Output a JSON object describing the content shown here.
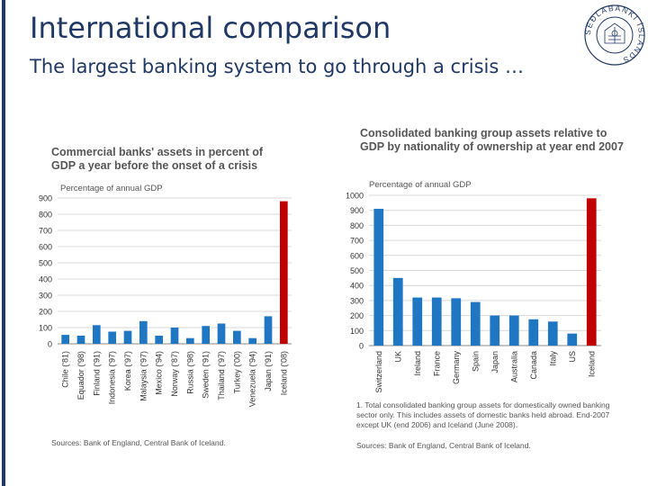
{
  "slide": {
    "title": "International comparison",
    "subtitle": "The largest banking system to go through a crisis …",
    "accent_color": "#1f3864",
    "logo_icon": "seal-icon",
    "logo_text": "SEÐLABANKI ÍSLANDS"
  },
  "chart_data": [
    {
      "type": "bar",
      "title": "Commercial banks' assets in percent of GDP a year before the onset of a crisis",
      "unit_label": "Percentage of annual GDP",
      "categories": [
        "Chile ('81)",
        "Equador ('98)",
        "Finland ('91)",
        "Indonesia ('97)",
        "Korea ('97)",
        "Malaysia ('97)",
        "Mexico ('94)",
        "Norway ('87)",
        "Russia ('98)",
        "Sweden ('91)",
        "Thailand ('97)",
        "Turkey ('00)",
        "Venezuela ('94)",
        "Japan ('91)",
        "Iceland ('08)"
      ],
      "values": [
        55,
        50,
        115,
        75,
        80,
        140,
        50,
        100,
        35,
        110,
        125,
        80,
        35,
        170,
        880
      ],
      "highlight_index": 14,
      "ylim": [
        0,
        900
      ],
      "yticks": [
        0,
        100,
        200,
        300,
        400,
        500,
        600,
        700,
        800,
        900
      ],
      "grid": true,
      "bar_color": "#1f77c4",
      "highlight_color": "#c00000",
      "source": "Sources: Bank of England, Central Bank of Iceland."
    },
    {
      "type": "bar",
      "title": "Consolidated banking group assets relative to GDP by nationality of ownership at year end 2007",
      "unit_label": "Percentage of annual GDP",
      "categories": [
        "Switzerland",
        "UK",
        "Ireland",
        "France",
        "Germany",
        "Spain",
        "Japan",
        "Australia",
        "Canada",
        "Italy",
        "US",
        "Iceland"
      ],
      "values": [
        910,
        450,
        320,
        320,
        315,
        290,
        200,
        200,
        175,
        160,
        80,
        980
      ],
      "highlight_index": 11,
      "ylim": [
        0,
        1000
      ],
      "yticks": [
        0,
        100,
        200,
        300,
        400,
        500,
        600,
        700,
        800,
        900,
        1000
      ],
      "grid": true,
      "bar_color": "#1f77c4",
      "highlight_color": "#c00000",
      "footnote": "1. Total consolidated banking group assets for domestically owned banking sector only. This includes assets of domestic banks held abroad. End-2007 except UK (end 2006) and Iceland (June 2008).",
      "source": "Sources: Bank of England, Central Bank of Iceland."
    }
  ]
}
